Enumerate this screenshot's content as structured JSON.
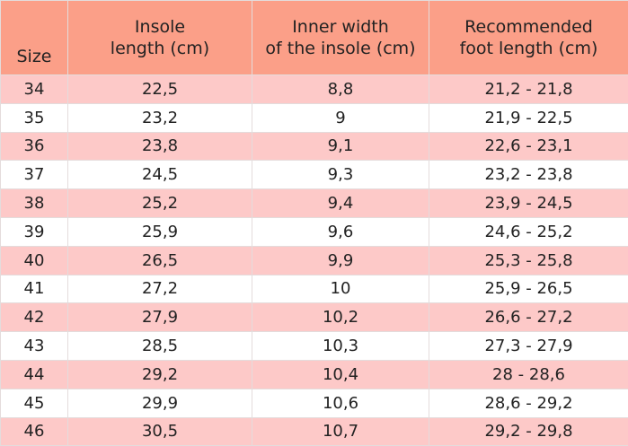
{
  "table": {
    "header": [
      [
        "Size"
      ],
      [
        "Insole",
        "length (cm)"
      ],
      [
        "Inner width",
        "of the insole (cm)"
      ],
      [
        "Recommended",
        "foot length (cm)"
      ]
    ],
    "rows": [
      [
        "34",
        "22,5",
        "8,8",
        "21,2 - 21,8"
      ],
      [
        "35",
        "23,2",
        "9",
        "21,9 - 22,5"
      ],
      [
        "36",
        "23,8",
        "9,1",
        "22,6 - 23,1"
      ],
      [
        "37",
        "24,5",
        "9,3",
        "23,2 - 23,8"
      ],
      [
        "38",
        "25,2",
        "9,4",
        "23,9 - 24,5"
      ],
      [
        "39",
        "25,9",
        "9,6",
        "24,6 - 25,2"
      ],
      [
        "40",
        "26,5",
        "9,9",
        "25,3 - 25,8"
      ],
      [
        "41",
        "27,2",
        "10",
        "25,9 - 26,5"
      ],
      [
        "42",
        "27,9",
        "10,2",
        "26,6 - 27,2"
      ],
      [
        "43",
        "28,5",
        "10,3",
        "27,3 - 27,9"
      ],
      [
        "44",
        "29,2",
        "10,4",
        "28 - 28,6"
      ],
      [
        "45",
        "29,9",
        "10,6",
        "28,6 - 29,2"
      ],
      [
        "46",
        "30,5",
        "10,7",
        "29,2 - 29,8"
      ]
    ]
  }
}
